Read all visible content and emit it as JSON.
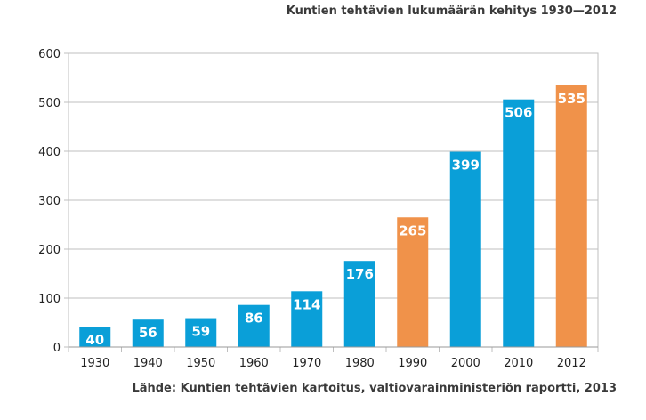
{
  "title": "Kuntien tehtävien lukumäärän kehitys 1930—2012",
  "source": "Lähde: Kuntien tehtävien kartoitus, valtiovarainministeriön raportti, 2013",
  "colors": {
    "blue": "#0a9fd8",
    "orange": "#f0924a"
  },
  "chart_data": {
    "type": "bar",
    "title": "Kuntien tehtävien lukumäärän kehitys 1930—2012",
    "categories": [
      "1930",
      "1940",
      "1950",
      "1960",
      "1970",
      "1980",
      "1990",
      "2000",
      "2010",
      "2012"
    ],
    "values": [
      40,
      56,
      59,
      86,
      114,
      176,
      265,
      399,
      506,
      535
    ],
    "data_labels": [
      "40",
      "56",
      "59",
      "86",
      "114",
      "176",
      "265",
      "399",
      "506",
      "535"
    ],
    "bar_colors": [
      "#0a9fd8",
      "#0a9fd8",
      "#0a9fd8",
      "#0a9fd8",
      "#0a9fd8",
      "#0a9fd8",
      "#f0924a",
      "#0a9fd8",
      "#0a9fd8",
      "#f0924a"
    ],
    "ylim": [
      0,
      600
    ],
    "yticks": [
      "0",
      "100",
      "200",
      "300",
      "400",
      "500",
      "600"
    ],
    "grid": true,
    "legend": "none"
  }
}
